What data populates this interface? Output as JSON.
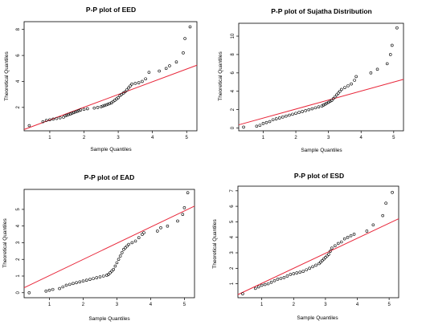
{
  "chart_data": [
    {
      "type": "scatter",
      "title": "P-P plot of EED",
      "xlabel": "Sample Quantiles",
      "ylabel": "Theoretical Quantiles",
      "xticks": [
        1,
        2,
        3,
        4,
        5
      ],
      "yticks": [
        2,
        4,
        6,
        8
      ],
      "xlim": [
        0.25,
        5.3
      ],
      "ylim": [
        0.2,
        8.6
      ],
      "reference_line": [
        [
          0.25,
          0.3
        ],
        [
          5.3,
          5.25
        ]
      ],
      "points": [
        [
          0.4,
          0.6
        ],
        [
          0.8,
          0.9
        ],
        [
          0.9,
          1.0
        ],
        [
          1.0,
          1.05
        ],
        [
          1.1,
          1.1
        ],
        [
          1.2,
          1.15
        ],
        [
          1.3,
          1.2
        ],
        [
          1.4,
          1.25
        ],
        [
          1.45,
          1.35
        ],
        [
          1.5,
          1.4
        ],
        [
          1.55,
          1.45
        ],
        [
          1.6,
          1.5
        ],
        [
          1.65,
          1.55
        ],
        [
          1.7,
          1.6
        ],
        [
          1.75,
          1.65
        ],
        [
          1.8,
          1.7
        ],
        [
          1.85,
          1.75
        ],
        [
          1.9,
          1.8
        ],
        [
          2.0,
          1.85
        ],
        [
          2.1,
          1.9
        ],
        [
          2.3,
          1.95
        ],
        [
          2.4,
          2.0
        ],
        [
          2.5,
          2.05
        ],
        [
          2.55,
          2.1
        ],
        [
          2.6,
          2.15
        ],
        [
          2.65,
          2.2
        ],
        [
          2.7,
          2.25
        ],
        [
          2.75,
          2.3
        ],
        [
          2.8,
          2.35
        ],
        [
          2.85,
          2.45
        ],
        [
          2.9,
          2.55
        ],
        [
          2.95,
          2.65
        ],
        [
          3.0,
          2.75
        ],
        [
          3.05,
          2.9
        ],
        [
          3.1,
          3.0
        ],
        [
          3.15,
          3.1
        ],
        [
          3.2,
          3.2
        ],
        [
          3.25,
          3.35
        ],
        [
          3.3,
          3.5
        ],
        [
          3.35,
          3.65
        ],
        [
          3.4,
          3.8
        ],
        [
          3.5,
          3.85
        ],
        [
          3.6,
          3.9
        ],
        [
          3.7,
          4.0
        ],
        [
          3.8,
          4.2
        ],
        [
          3.9,
          4.7
        ],
        [
          4.2,
          4.8
        ],
        [
          4.4,
          5.0
        ],
        [
          4.5,
          5.2
        ],
        [
          4.7,
          5.5
        ],
        [
          4.9,
          6.2
        ],
        [
          4.95,
          7.3
        ],
        [
          5.1,
          8.2
        ]
      ]
    },
    {
      "type": "scatter",
      "title": "P-P plot of Sujatha Distribution",
      "xlabel": "Sample Quantiles",
      "ylabel": "Theoretical Quantiles",
      "xticks": [
        1,
        2,
        3,
        4,
        5
      ],
      "yticks": [
        0,
        2,
        4,
        6,
        8,
        10
      ],
      "xlim": [
        0.25,
        5.3
      ],
      "ylim": [
        -0.3,
        11.4
      ],
      "reference_line": [
        [
          0.25,
          0.35
        ],
        [
          5.3,
          5.3
        ]
      ],
      "points": [
        [
          0.4,
          0.1
        ],
        [
          0.8,
          0.2
        ],
        [
          0.9,
          0.3
        ],
        [
          1.0,
          0.5
        ],
        [
          1.1,
          0.6
        ],
        [
          1.2,
          0.7
        ],
        [
          1.3,
          0.9
        ],
        [
          1.4,
          1.0
        ],
        [
          1.5,
          1.1
        ],
        [
          1.6,
          1.2
        ],
        [
          1.7,
          1.3
        ],
        [
          1.8,
          1.4
        ],
        [
          1.9,
          1.5
        ],
        [
          2.0,
          1.6
        ],
        [
          2.1,
          1.7
        ],
        [
          2.2,
          1.8
        ],
        [
          2.3,
          1.9
        ],
        [
          2.4,
          2.0
        ],
        [
          2.5,
          2.1
        ],
        [
          2.6,
          2.2
        ],
        [
          2.7,
          2.3
        ],
        [
          2.8,
          2.4
        ],
        [
          2.85,
          2.5
        ],
        [
          2.9,
          2.6
        ],
        [
          2.95,
          2.7
        ],
        [
          3.0,
          2.8
        ],
        [
          3.05,
          2.9
        ],
        [
          3.1,
          3.0
        ],
        [
          3.15,
          3.2
        ],
        [
          3.2,
          3.4
        ],
        [
          3.25,
          3.6
        ],
        [
          3.3,
          3.8
        ],
        [
          3.35,
          4.0
        ],
        [
          3.4,
          4.2
        ],
        [
          3.5,
          4.4
        ],
        [
          3.6,
          4.6
        ],
        [
          3.7,
          4.8
        ],
        [
          3.8,
          5.2
        ],
        [
          3.85,
          5.6
        ],
        [
          4.3,
          6.0
        ],
        [
          4.5,
          6.4
        ],
        [
          4.8,
          7.0
        ],
        [
          4.9,
          8.0
        ],
        [
          4.95,
          9.0
        ],
        [
          5.1,
          10.9
        ]
      ]
    },
    {
      "type": "scatter",
      "title": "P-P plot of EAD",
      "xlabel": "Sample Quantiles",
      "ylabel": "Theoretical Quantiles",
      "xticks": [
        1,
        2,
        3,
        4,
        5
      ],
      "yticks": [
        0,
        1,
        2,
        3,
        4,
        5
      ],
      "xlim": [
        0.25,
        5.3
      ],
      "ylim": [
        -0.3,
        6.2
      ],
      "reference_line": [
        [
          0.25,
          0.3
        ],
        [
          5.3,
          5.2
        ]
      ],
      "points": [
        [
          0.4,
          0.0
        ],
        [
          0.9,
          0.1
        ],
        [
          1.0,
          0.15
        ],
        [
          1.1,
          0.2
        ],
        [
          1.3,
          0.25
        ],
        [
          1.4,
          0.35
        ],
        [
          1.5,
          0.45
        ],
        [
          1.6,
          0.5
        ],
        [
          1.7,
          0.55
        ],
        [
          1.8,
          0.6
        ],
        [
          1.9,
          0.65
        ],
        [
          2.0,
          0.7
        ],
        [
          2.1,
          0.75
        ],
        [
          2.2,
          0.8
        ],
        [
          2.3,
          0.85
        ],
        [
          2.4,
          0.9
        ],
        [
          2.5,
          0.95
        ],
        [
          2.6,
          1.0
        ],
        [
          2.7,
          1.05
        ],
        [
          2.75,
          1.1
        ],
        [
          2.8,
          1.2
        ],
        [
          2.85,
          1.3
        ],
        [
          2.9,
          1.4
        ],
        [
          2.95,
          1.6
        ],
        [
          3.0,
          1.8
        ],
        [
          3.05,
          2.0
        ],
        [
          3.1,
          2.2
        ],
        [
          3.15,
          2.4
        ],
        [
          3.2,
          2.6
        ],
        [
          3.25,
          2.7
        ],
        [
          3.3,
          2.8
        ],
        [
          3.35,
          2.9
        ],
        [
          3.45,
          3.0
        ],
        [
          3.55,
          3.1
        ],
        [
          3.65,
          3.3
        ],
        [
          3.75,
          3.5
        ],
        [
          3.8,
          3.6
        ],
        [
          4.2,
          3.7
        ],
        [
          4.3,
          3.9
        ],
        [
          4.5,
          4.0
        ],
        [
          4.8,
          4.3
        ],
        [
          4.95,
          4.7
        ],
        [
          5.0,
          5.1
        ],
        [
          5.1,
          6.0
        ]
      ]
    },
    {
      "type": "scatter",
      "title": "P-P plot of ESD",
      "xlabel": "Sample Quantiles",
      "ylabel": "Theoretical Quantiles",
      "xticks": [
        1,
        2,
        3,
        4,
        5
      ],
      "yticks": [
        1,
        2,
        3,
        4,
        5,
        6,
        7
      ],
      "xlim": [
        0.25,
        5.3
      ],
      "ylim": [
        0.1,
        7.3
      ],
      "reference_line": [
        [
          0.25,
          0.3
        ],
        [
          5.3,
          5.2
        ]
      ],
      "points": [
        [
          0.4,
          0.35
        ],
        [
          0.8,
          0.7
        ],
        [
          0.9,
          0.8
        ],
        [
          1.0,
          0.9
        ],
        [
          1.1,
          0.95
        ],
        [
          1.2,
          1.0
        ],
        [
          1.3,
          1.1
        ],
        [
          1.4,
          1.2
        ],
        [
          1.5,
          1.3
        ],
        [
          1.6,
          1.35
        ],
        [
          1.7,
          1.4
        ],
        [
          1.8,
          1.5
        ],
        [
          1.9,
          1.6
        ],
        [
          2.0,
          1.65
        ],
        [
          2.1,
          1.7
        ],
        [
          2.2,
          1.75
        ],
        [
          2.3,
          1.8
        ],
        [
          2.4,
          1.9
        ],
        [
          2.5,
          2.0
        ],
        [
          2.6,
          2.1
        ],
        [
          2.7,
          2.2
        ],
        [
          2.8,
          2.3
        ],
        [
          2.85,
          2.4
        ],
        [
          2.9,
          2.5
        ],
        [
          2.95,
          2.6
        ],
        [
          3.0,
          2.7
        ],
        [
          3.05,
          2.8
        ],
        [
          3.1,
          2.9
        ],
        [
          3.15,
          3.1
        ],
        [
          3.2,
          3.3
        ],
        [
          3.3,
          3.45
        ],
        [
          3.4,
          3.6
        ],
        [
          3.5,
          3.7
        ],
        [
          3.6,
          3.9
        ],
        [
          3.7,
          4.0
        ],
        [
          3.8,
          4.1
        ],
        [
          3.9,
          4.2
        ],
        [
          4.3,
          4.4
        ],
        [
          4.5,
          4.8
        ],
        [
          4.8,
          5.4
        ],
        [
          4.9,
          6.2
        ],
        [
          5.1,
          6.9
        ]
      ]
    }
  ]
}
